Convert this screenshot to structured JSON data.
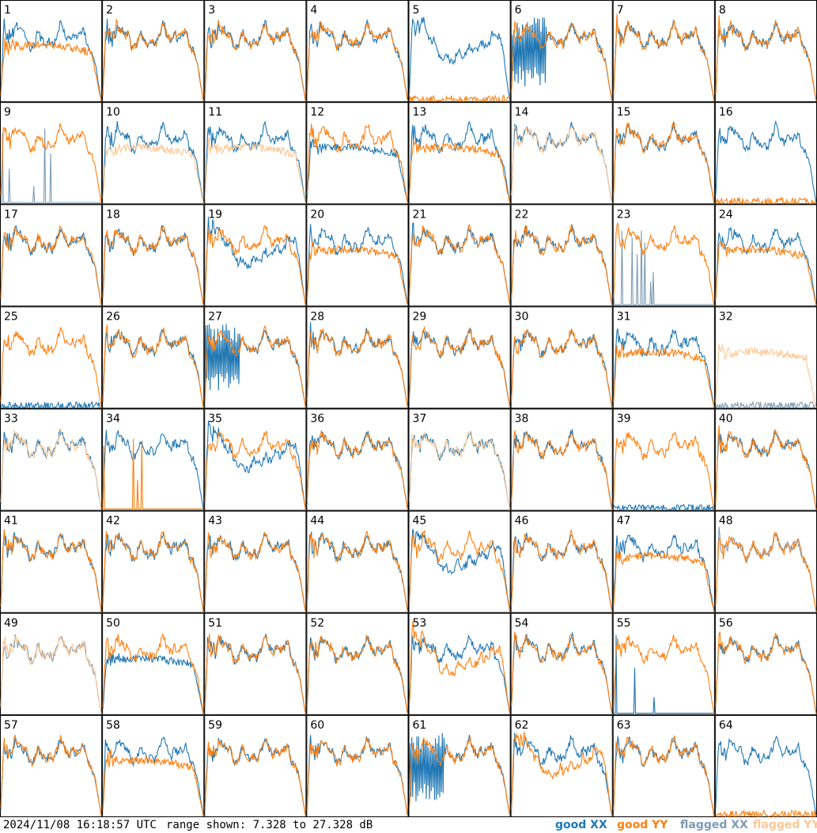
{
  "footer": {
    "timestamp": "2024/11/08 16:18:57 UTC",
    "range_text": "range shown: 7.328 to 27.328 dB"
  },
  "legend": {
    "good_xx": "good XX",
    "good_yy": "good YY",
    "flagged_xx": "flagged XX",
    "flagged_yy": "flagged YY"
  },
  "colors": {
    "good_xx": "#1f77b4",
    "good_yy": "#ff7f0e",
    "flagged_xx": "#7f9bb3",
    "flagged_yy": "#fcc793",
    "frame": "#000000",
    "background": "#ffffff"
  },
  "chart_data": {
    "type": "line",
    "layout": "8x8 grid of small multiples",
    "ylim": [
      7.328,
      27.328
    ],
    "yunit": "dB",
    "panels": [
      {
        "id": "1",
        "xx": "good",
        "yy": "good",
        "xx_shape": "normal",
        "yy_shape": "low"
      },
      {
        "id": "2",
        "xx": "good",
        "yy": "good",
        "xx_shape": "normal",
        "yy_shape": "normal"
      },
      {
        "id": "3",
        "xx": "good",
        "yy": "good",
        "xx_shape": "normal",
        "yy_shape": "normal"
      },
      {
        "id": "4",
        "xx": "good",
        "yy": "good",
        "xx_shape": "normal",
        "yy_shape": "normal"
      },
      {
        "id": "5",
        "xx": "good",
        "yy": "good",
        "xx_shape": "dip",
        "yy_shape": "flat"
      },
      {
        "id": "6",
        "xx": "good",
        "yy": "good",
        "xx_shape": "spiky",
        "yy_shape": "normal"
      },
      {
        "id": "7",
        "xx": "good",
        "yy": "good",
        "xx_shape": "normal",
        "yy_shape": "normal"
      },
      {
        "id": "8",
        "xx": "good",
        "yy": "good",
        "xx_shape": "normal",
        "yy_shape": "normal"
      },
      {
        "id": "9",
        "xx": "flagged",
        "yy": "good",
        "xx_shape": "spikes",
        "yy_shape": "normal"
      },
      {
        "id": "10",
        "xx": "good",
        "yy": "flagged",
        "xx_shape": "normal",
        "yy_shape": "low"
      },
      {
        "id": "11",
        "xx": "good",
        "yy": "flagged",
        "xx_shape": "normal",
        "yy_shape": "low"
      },
      {
        "id": "12",
        "xx": "good",
        "yy": "good",
        "xx_shape": "low",
        "yy_shape": "normal"
      },
      {
        "id": "13",
        "xx": "good",
        "yy": "good",
        "xx_shape": "normal",
        "yy_shape": "low"
      },
      {
        "id": "14",
        "xx": "good",
        "yy": "flagged",
        "xx_shape": "normal",
        "yy_shape": "normal"
      },
      {
        "id": "15",
        "xx": "good",
        "yy": "good",
        "xx_shape": "normal",
        "yy_shape": "normal"
      },
      {
        "id": "16",
        "xx": "good",
        "yy": "good",
        "xx_shape": "normal",
        "yy_shape": "flat"
      },
      {
        "id": "17",
        "xx": "good",
        "yy": "good",
        "xx_shape": "normal",
        "yy_shape": "normal"
      },
      {
        "id": "18",
        "xx": "good",
        "yy": "good",
        "xx_shape": "normal",
        "yy_shape": "normal"
      },
      {
        "id": "19",
        "xx": "good",
        "yy": "good",
        "xx_shape": "dip",
        "yy_shape": "normal"
      },
      {
        "id": "20",
        "xx": "good",
        "yy": "good",
        "xx_shape": "normal",
        "yy_shape": "low"
      },
      {
        "id": "21",
        "xx": "good",
        "yy": "good",
        "xx_shape": "normal",
        "yy_shape": "normal"
      },
      {
        "id": "22",
        "xx": "good",
        "yy": "good",
        "xx_shape": "normal",
        "yy_shape": "normal"
      },
      {
        "id": "23",
        "xx": "flagged",
        "yy": "good",
        "xx_shape": "spikes",
        "yy_shape": "normal"
      },
      {
        "id": "24",
        "xx": "good",
        "yy": "good",
        "xx_shape": "normal",
        "yy_shape": "low"
      },
      {
        "id": "25",
        "xx": "good",
        "yy": "good",
        "xx_shape": "flat",
        "yy_shape": "normal"
      },
      {
        "id": "26",
        "xx": "good",
        "yy": "good",
        "xx_shape": "normal",
        "yy_shape": "normal"
      },
      {
        "id": "27",
        "xx": "good",
        "yy": "good",
        "xx_shape": "spiky",
        "yy_shape": "normal"
      },
      {
        "id": "28",
        "xx": "good",
        "yy": "good",
        "xx_shape": "normal",
        "yy_shape": "normal"
      },
      {
        "id": "29",
        "xx": "good",
        "yy": "good",
        "xx_shape": "normal",
        "yy_shape": "normal"
      },
      {
        "id": "30",
        "xx": "good",
        "yy": "good",
        "xx_shape": "normal",
        "yy_shape": "normal"
      },
      {
        "id": "31",
        "xx": "good",
        "yy": "good",
        "xx_shape": "normal",
        "yy_shape": "low"
      },
      {
        "id": "32",
        "xx": "flagged",
        "yy": "flagged",
        "xx_shape": "flat",
        "yy_shape": "low"
      },
      {
        "id": "33",
        "xx": "good",
        "yy": "flagged",
        "xx_shape": "normal",
        "yy_shape": "normal"
      },
      {
        "id": "34",
        "xx": "good",
        "yy": "good",
        "xx_shape": "normal",
        "yy_shape": "spikes"
      },
      {
        "id": "35",
        "xx": "good",
        "yy": "good",
        "xx_shape": "dip",
        "yy_shape": "normal"
      },
      {
        "id": "36",
        "xx": "good",
        "yy": "good",
        "xx_shape": "normal",
        "yy_shape": "normal"
      },
      {
        "id": "37",
        "xx": "good",
        "yy": "flagged",
        "xx_shape": "normal",
        "yy_shape": "normal"
      },
      {
        "id": "38",
        "xx": "good",
        "yy": "good",
        "xx_shape": "normal",
        "yy_shape": "normal"
      },
      {
        "id": "39",
        "xx": "good",
        "yy": "good",
        "xx_shape": "flat",
        "yy_shape": "normal"
      },
      {
        "id": "40",
        "xx": "good",
        "yy": "good",
        "xx_shape": "normal",
        "yy_shape": "normal"
      },
      {
        "id": "41",
        "xx": "good",
        "yy": "good",
        "xx_shape": "normal",
        "yy_shape": "normal"
      },
      {
        "id": "42",
        "xx": "good",
        "yy": "good",
        "xx_shape": "normal",
        "yy_shape": "normal"
      },
      {
        "id": "43",
        "xx": "good",
        "yy": "good",
        "xx_shape": "normal",
        "yy_shape": "normal"
      },
      {
        "id": "44",
        "xx": "good",
        "yy": "good",
        "xx_shape": "normal",
        "yy_shape": "normal"
      },
      {
        "id": "45",
        "xx": "good",
        "yy": "good",
        "xx_shape": "dip",
        "yy_shape": "normal"
      },
      {
        "id": "46",
        "xx": "good",
        "yy": "good",
        "xx_shape": "normal",
        "yy_shape": "normal"
      },
      {
        "id": "47",
        "xx": "good",
        "yy": "good",
        "xx_shape": "normal",
        "yy_shape": "low"
      },
      {
        "id": "48",
        "xx": "flagged",
        "yy": "good",
        "xx_shape": "normal",
        "yy_shape": "normal"
      },
      {
        "id": "49",
        "xx": "flagged",
        "yy": "flagged",
        "xx_shape": "normal",
        "yy_shape": "normal"
      },
      {
        "id": "50",
        "xx": "good",
        "yy": "good",
        "xx_shape": "low",
        "yy_shape": "normal"
      },
      {
        "id": "51",
        "xx": "good",
        "yy": "good",
        "xx_shape": "normal",
        "yy_shape": "normal"
      },
      {
        "id": "52",
        "xx": "good",
        "yy": "good",
        "xx_shape": "normal",
        "yy_shape": "normal"
      },
      {
        "id": "53",
        "xx": "good",
        "yy": "good",
        "xx_shape": "normal",
        "yy_shape": "dip"
      },
      {
        "id": "54",
        "xx": "good",
        "yy": "good",
        "xx_shape": "normal",
        "yy_shape": "normal"
      },
      {
        "id": "55",
        "xx": "good",
        "yy": "good",
        "xx_shape": "spikes",
        "yy_shape": "normal"
      },
      {
        "id": "56",
        "xx": "good",
        "yy": "good",
        "xx_shape": "normal",
        "yy_shape": "normal"
      },
      {
        "id": "57",
        "xx": "good",
        "yy": "good",
        "xx_shape": "normal",
        "yy_shape": "normal"
      },
      {
        "id": "58",
        "xx": "good",
        "yy": "good",
        "xx_shape": "normal",
        "yy_shape": "low"
      },
      {
        "id": "59",
        "xx": "good",
        "yy": "good",
        "xx_shape": "normal",
        "yy_shape": "normal"
      },
      {
        "id": "60",
        "xx": "good",
        "yy": "good",
        "xx_shape": "normal",
        "yy_shape": "normal"
      },
      {
        "id": "61",
        "xx": "good",
        "yy": "good",
        "xx_shape": "spiky",
        "yy_shape": "normal"
      },
      {
        "id": "62",
        "xx": "good",
        "yy": "good",
        "xx_shape": "normal",
        "yy_shape": "dip"
      },
      {
        "id": "63",
        "xx": "good",
        "yy": "good",
        "xx_shape": "normal",
        "yy_shape": "normal"
      },
      {
        "id": "64",
        "xx": "good",
        "yy": "good",
        "xx_shape": "normal",
        "yy_shape": "flat"
      }
    ]
  }
}
